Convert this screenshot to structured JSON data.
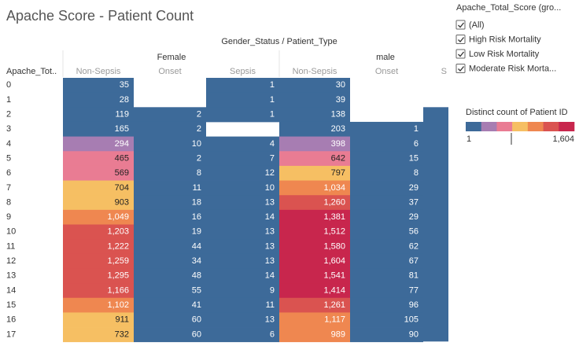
{
  "header": {
    "title": "Apache Score - Patient Count"
  },
  "table": {
    "column_header": "Gender_Status / Patient_Type",
    "row_header": "Apache_Tot..",
    "rows": [
      "0",
      "1",
      "2",
      "3",
      "4",
      "5",
      "6",
      "7",
      "8",
      "9",
      "10",
      "11",
      "12",
      "13",
      "14",
      "15",
      "16",
      "17"
    ],
    "groups": [
      {
        "name": "Female",
        "columns": [
          {
            "name": "Non-Sepsis",
            "values": [
              35,
              28,
              119,
              165,
              294,
              465,
              569,
              704,
              903,
              1049,
              1203,
              1222,
              1259,
              1295,
              1166,
              1102,
              911,
              732
            ],
            "value_labels": [
              "35",
              "28",
              "119",
              "165",
              "294",
              "465",
              "569",
              "704",
              "903",
              "1,049",
              "1,203",
              "1,222",
              "1,259",
              "1,295",
              "1,166",
              "1,102",
              "911",
              "732"
            ]
          },
          {
            "name": "Onset",
            "values": [
              null,
              null,
              2,
              2,
              10,
              2,
              8,
              11,
              18,
              16,
              19,
              44,
              34,
              48,
              55,
              41,
              60,
              60
            ]
          },
          {
            "name": "Sepsis",
            "values": [
              1,
              1,
              1,
              null,
              4,
              7,
              12,
              10,
              13,
              14,
              13,
              13,
              13,
              14,
              9,
              11,
              13,
              6
            ]
          }
        ]
      },
      {
        "name": "male",
        "columns": [
          {
            "name": "Non-Sepsis",
            "values": [
              30,
              39,
              138,
              203,
              398,
              642,
              797,
              1034,
              1260,
              1381,
              1512,
              1580,
              1604,
              1541,
              1414,
              1261,
              1117,
              989
            ],
            "value_labels": [
              "30",
              "39",
              "138",
              "203",
              "398",
              "642",
              "797",
              "1,034",
              "1,260",
              "1,381",
              "1,512",
              "1,580",
              "1,604",
              "1,541",
              "1,414",
              "1,261",
              "1,117",
              "989"
            ]
          },
          {
            "name": "Onset",
            "values": [
              null,
              null,
              null,
              1,
              6,
              15,
              8,
              29,
              37,
              29,
              56,
              62,
              67,
              81,
              77,
              96,
              105,
              90
            ]
          },
          {
            "name": "S"
          }
        ]
      }
    ]
  },
  "filter": {
    "title": "Apache_Total_Score (gro...",
    "options": [
      "(All)",
      "High Risk Mortality",
      "Low Risk Mortality",
      "Moderate Risk Morta..."
    ]
  },
  "legend": {
    "title": "Distinct count of Patient ID",
    "min": 1,
    "max": {
      "value": 1604,
      "label": "1,604"
    },
    "colors": [
      "#3d6a99",
      "#a77db2",
      "#e97c93",
      "#f6bf63",
      "#ef8750",
      "#da5350",
      "#c8264d"
    ]
  }
}
